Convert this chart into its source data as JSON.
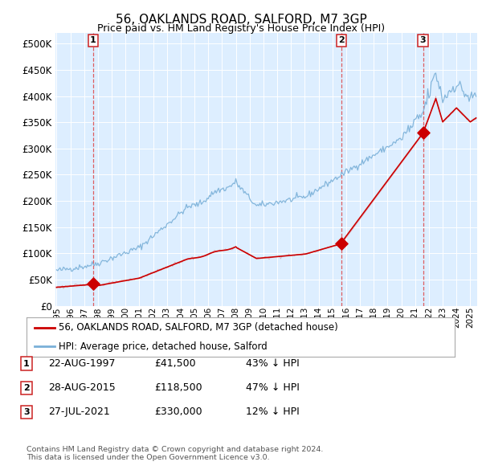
{
  "title": "56, OAKLANDS ROAD, SALFORD, M7 3GP",
  "subtitle": "Price paid vs. HM Land Registry's House Price Index (HPI)",
  "ylim": [
    0,
    520000
  ],
  "yticks": [
    0,
    50000,
    100000,
    150000,
    200000,
    250000,
    300000,
    350000,
    400000,
    450000,
    500000
  ],
  "xlim_start": 1994.92,
  "xlim_end": 2025.5,
  "bg_color": "#ddeeff",
  "grid_color": "#ffffff",
  "sale_dates": [
    1997.648,
    2015.66,
    2021.575
  ],
  "sale_prices": [
    41500,
    118500,
    330000
  ],
  "sale_labels": [
    "1",
    "2",
    "3"
  ],
  "sale_color": "#cc0000",
  "hpi_color": "#7ab0d8",
  "footer_text": "Contains HM Land Registry data © Crown copyright and database right 2024.\nThis data is licensed under the Open Government Licence v3.0.",
  "legend_label_red": "56, OAKLANDS ROAD, SALFORD, M7 3GP (detached house)",
  "legend_label_blue": "HPI: Average price, detached house, Salford",
  "table_rows": [
    [
      "1",
      "22-AUG-1997",
      "£41,500",
      "43% ↓ HPI"
    ],
    [
      "2",
      "28-AUG-2015",
      "£118,500",
      "47% ↓ HPI"
    ],
    [
      "3",
      "27-JUL-2021",
      "£330,000",
      "12% ↓ HPI"
    ]
  ]
}
